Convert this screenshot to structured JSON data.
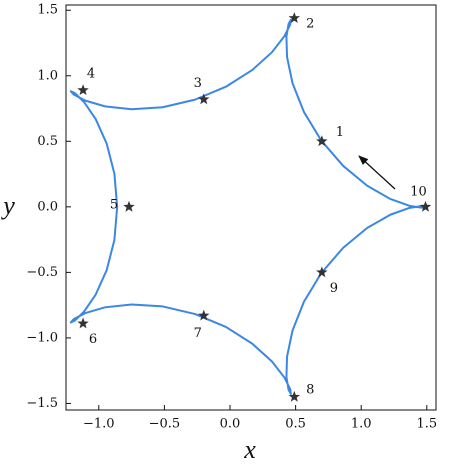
{
  "chart_data": {
    "type": "line",
    "x_label": "x",
    "y_label": "y",
    "color": "#3b87e3",
    "x": [
      1.5,
      1.4658,
      1.3683,
      1.2212,
      1.0445,
      0.8619,
      0.6957,
      0.5639,
      0.4765,
      0.4347,
      0.43,
      0.4465,
      0.4635,
      0.4594,
      0.4156,
      0.32,
      0.169,
      -0.0312,
      -0.2657,
      -0.5133,
      -0.75,
      -0.9525,
      -1.1025,
      -1.1899,
      -1.2135,
      -1.1819,
      -1.1113,
      -1.0234,
      -0.9401,
      -0.8812,
      -0.86,
      -0.8812,
      -0.9401,
      -1.0234,
      -1.1113,
      -1.1819,
      -1.2135,
      -1.1899,
      -1.1025,
      -0.9525,
      -0.75,
      -0.5133,
      -0.2657,
      -0.0312,
      0.169,
      0.32,
      0.4156,
      0.4594,
      0.4635,
      0.4465,
      0.43,
      0.4347,
      0.4765,
      0.5639,
      0.6957,
      0.8619,
      1.0445,
      1.2212,
      1.3683,
      1.4658,
      1.5
    ],
    "values": [
      0,
      -0.0068,
      0.0075,
      0.0603,
      0.1617,
      0.3129,
      0.5055,
      0.723,
      0.9434,
      1.1427,
      1.299,
      1.3961,
      1.4266,
      1.392,
      1.3036,
      1.18,
      1.0434,
      0.9164,
      0.818,
      0.7597,
      0.7448,
      0.7665,
      0.8104,
      0.856,
      0.8817,
      0.8671,
      0.7981,
      0.6689,
      0.4831,
      0.2534,
      0,
      -0.2534,
      -0.4831,
      -0.6689,
      -0.7981,
      -0.8671,
      -0.8817,
      -0.856,
      -0.8104,
      -0.7665,
      -0.7448,
      -0.7597,
      -0.818,
      -0.9164,
      -1.0434,
      -1.18,
      -1.3036,
      -1.392,
      -1.4266,
      -1.3961,
      -1.299,
      -1.1427,
      -0.9434,
      -0.723,
      -0.5055,
      -0.3129,
      -0.1617,
      -0.0603,
      -0.0075,
      0.0068,
      0
    ],
    "points": {
      "color": "#333333",
      "x": [
        0.7,
        0.49,
        -0.2,
        -1.12,
        -0.77,
        -1.12,
        -0.2,
        0.49,
        0.7,
        1.49
      ],
      "y": [
        0.5,
        1.44,
        0.82,
        0.89,
        0,
        -0.89,
        -0.83,
        -1.45,
        -0.5,
        0
      ],
      "labels": [
        "1",
        "2",
        "3",
        "4",
        "5",
        "6",
        "7",
        "8",
        "9",
        "10"
      ]
    },
    "xlim": [
      -1.25,
      1.57
    ],
    "ylim": [
      -1.55,
      1.54
    ],
    "xticks": [
      {
        "value": -1.0,
        "label": "−1.0"
      },
      {
        "value": -0.5,
        "label": "−0.5"
      },
      {
        "value": 0.0,
        "label": "0.0"
      },
      {
        "value": 0.5,
        "label": "0.5"
      },
      {
        "value": 1.0,
        "label": "1.0"
      },
      {
        "value": 1.5,
        "label": "1.5"
      }
    ],
    "yticks": [
      {
        "value": -1.5,
        "label": "−1.5"
      },
      {
        "value": -1.0,
        "label": "−1.0"
      },
      {
        "value": -0.5,
        "label": "−0.5"
      },
      {
        "value": 0.0,
        "label": "0.0"
      },
      {
        "value": 0.5,
        "label": "0.5"
      },
      {
        "value": 1.0,
        "label": "1.0"
      },
      {
        "value": 1.5,
        "label": "1.5"
      }
    ]
  }
}
